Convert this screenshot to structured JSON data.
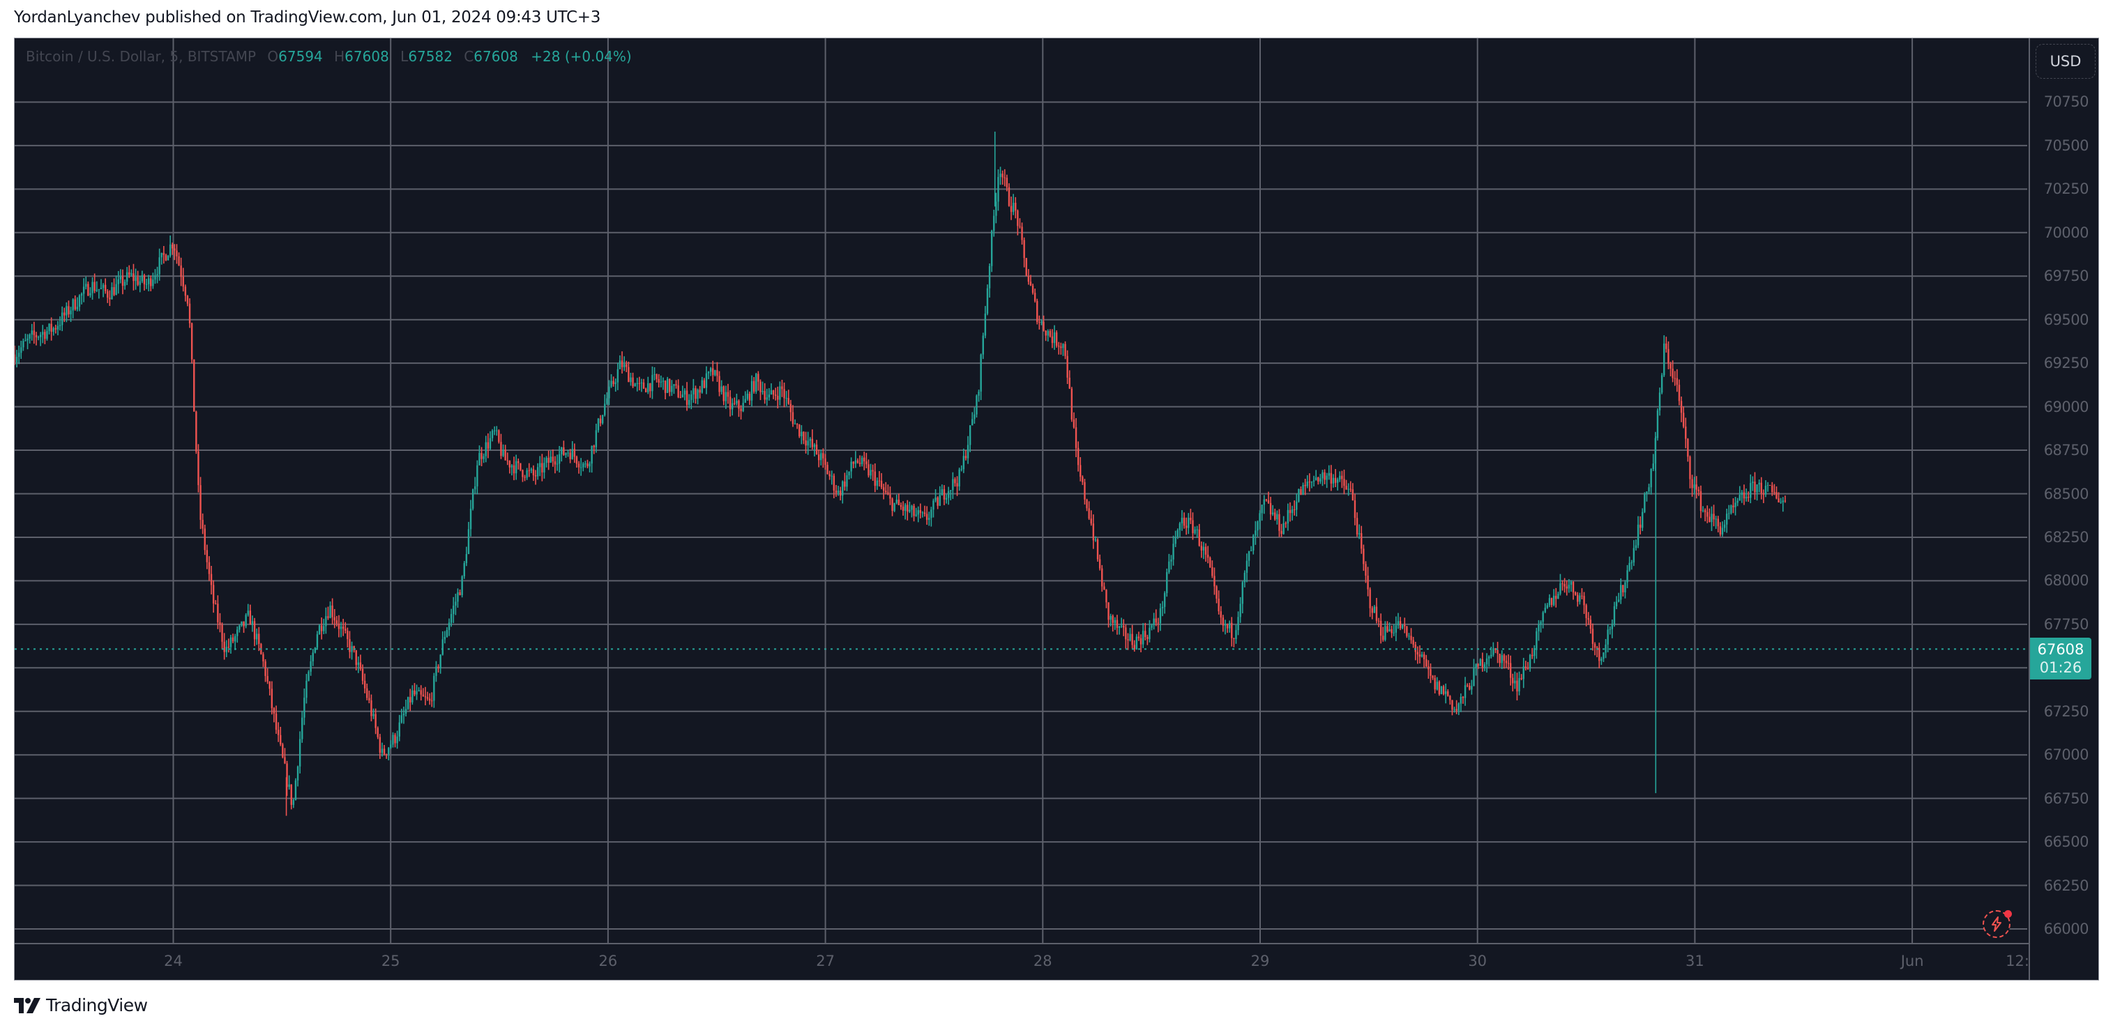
{
  "header": {
    "published_text": "YordanLyanchev published on TradingView.com, Jun 01, 2024 09:43 UTC+3"
  },
  "legend": {
    "symbol": "Bitcoin / U.S. Dollar, 5, BITSTAMP",
    "open_key": "O",
    "open": "67594",
    "high_key": "H",
    "high": "67608",
    "low_key": "L",
    "low": "67582",
    "close_key": "C",
    "close": "67608",
    "change": "+28 (+0.04%)"
  },
  "price_axis": {
    "currency_button": "USD",
    "last_price": "67608",
    "countdown": "01:26"
  },
  "footer": {
    "brand": "TradingView"
  },
  "colors": {
    "background": "#131722",
    "grid": "#5d606b",
    "up": "#26a69a",
    "down": "#ef5350",
    "axis_text": "#5d606b",
    "last_price_bg": "#26a69a"
  },
  "chart_data": {
    "type": "candlestick",
    "title": "Bitcoin / U.S. Dollar, 5, BITSTAMP",
    "interval": "5",
    "exchange": "BITSTAMP",
    "xlabel": "",
    "ylabel": "USD",
    "ylim": [
      66000,
      70750
    ],
    "y_ticks": [
      66000,
      66250,
      66500,
      66750,
      67000,
      67250,
      67500,
      67750,
      68000,
      68250,
      68500,
      68750,
      69000,
      69250,
      69500,
      69750,
      70000,
      70250,
      70500,
      70750
    ],
    "x_ticks": [
      "24",
      "25",
      "26",
      "27",
      "28",
      "29",
      "30",
      "31",
      "Jun",
      "12:"
    ],
    "grid": true,
    "last_price": 67608,
    "last_ohlc": {
      "open": 67594,
      "high": 67608,
      "low": 67582,
      "close": 67608,
      "change": 28,
      "change_pct": 0.04
    },
    "price_path_waypoints": {
      "note_x_unit": "days since May 23 00:00 (24 = 1.0)",
      "x": [
        0.27,
        0.35,
        0.45,
        0.55,
        0.62,
        0.7,
        0.8,
        0.88,
        0.95,
        1.0,
        1.07,
        1.12,
        1.18,
        1.24,
        1.3,
        1.35,
        1.42,
        1.48,
        1.55,
        1.6,
        1.66,
        1.72,
        1.78,
        1.84,
        1.9,
        1.96,
        2.02,
        2.1,
        2.18,
        2.25,
        2.33,
        2.4,
        2.48,
        2.52,
        2.58,
        2.66,
        2.74,
        2.82,
        2.9,
        2.98,
        3.06,
        3.14,
        3.22,
        3.3,
        3.36,
        3.42,
        3.48,
        3.56,
        3.62,
        3.68,
        3.74,
        3.8,
        3.86,
        3.92,
        3.98,
        4.06,
        4.14,
        4.22,
        4.3,
        4.38,
        4.46,
        4.54,
        4.62,
        4.7,
        4.76,
        4.8,
        4.84,
        4.88,
        4.92,
        4.98,
        5.04,
        5.1,
        5.16,
        5.22,
        5.3,
        5.36,
        5.42,
        5.48,
        5.54,
        5.6,
        5.64,
        5.7,
        5.76,
        5.82,
        5.88,
        5.94,
        6.02,
        6.1,
        6.18,
        6.26,
        6.34,
        6.42,
        6.5,
        6.56,
        6.64,
        6.72,
        6.8,
        6.86,
        6.9,
        6.94,
        7.0,
        7.06,
        7.12,
        7.18,
        7.24,
        7.32,
        7.4,
        7.48,
        7.56,
        7.64,
        7.7,
        7.76,
        7.81,
        7.86,
        7.92,
        7.98,
        8.04,
        8.12,
        8.2,
        8.28,
        8.36,
        8.42
      ],
      "price": [
        69300,
        69400,
        69450,
        69600,
        69700,
        69650,
        69750,
        69700,
        69850,
        69950,
        69600,
        68400,
        67900,
        67600,
        67700,
        67800,
        67500,
        67100,
        66700,
        67300,
        67700,
        67850,
        67700,
        67550,
        67300,
        67000,
        67100,
        67350,
        67300,
        67700,
        68000,
        68700,
        68850,
        68700,
        68650,
        68600,
        68700,
        68750,
        68650,
        69000,
        69250,
        69100,
        69150,
        69100,
        69050,
        69100,
        69200,
        69000,
        69000,
        69150,
        69050,
        69100,
        68900,
        68800,
        68700,
        68500,
        68700,
        68600,
        68450,
        68400,
        68350,
        68500,
        68600,
        69050,
        69900,
        70400,
        70200,
        70100,
        69800,
        69500,
        69400,
        69350,
        68650,
        68350,
        67800,
        67700,
        67650,
        67700,
        67800,
        68200,
        68350,
        68300,
        68100,
        67750,
        67700,
        68100,
        68450,
        68300,
        68500,
        68600,
        68600,
        68500,
        67900,
        67700,
        67750,
        67600,
        67400,
        67350,
        67250,
        67350,
        67500,
        67600,
        67550,
        67400,
        67550,
        67850,
        68000,
        67900,
        67550,
        67850,
        68100,
        68400,
        68700,
        69350,
        69100,
        68600,
        68400,
        68300,
        68450,
        68550,
        68500,
        68450
      ]
    },
    "notable_points": {
      "peak": {
        "x_day": "27",
        "approx_time_frac": 0.78,
        "price": 70580
      },
      "low_1": {
        "x_day": "23-24",
        "price": 66650
      },
      "low_2": {
        "x_day": "31-Jun",
        "price": 66780
      }
    }
  }
}
